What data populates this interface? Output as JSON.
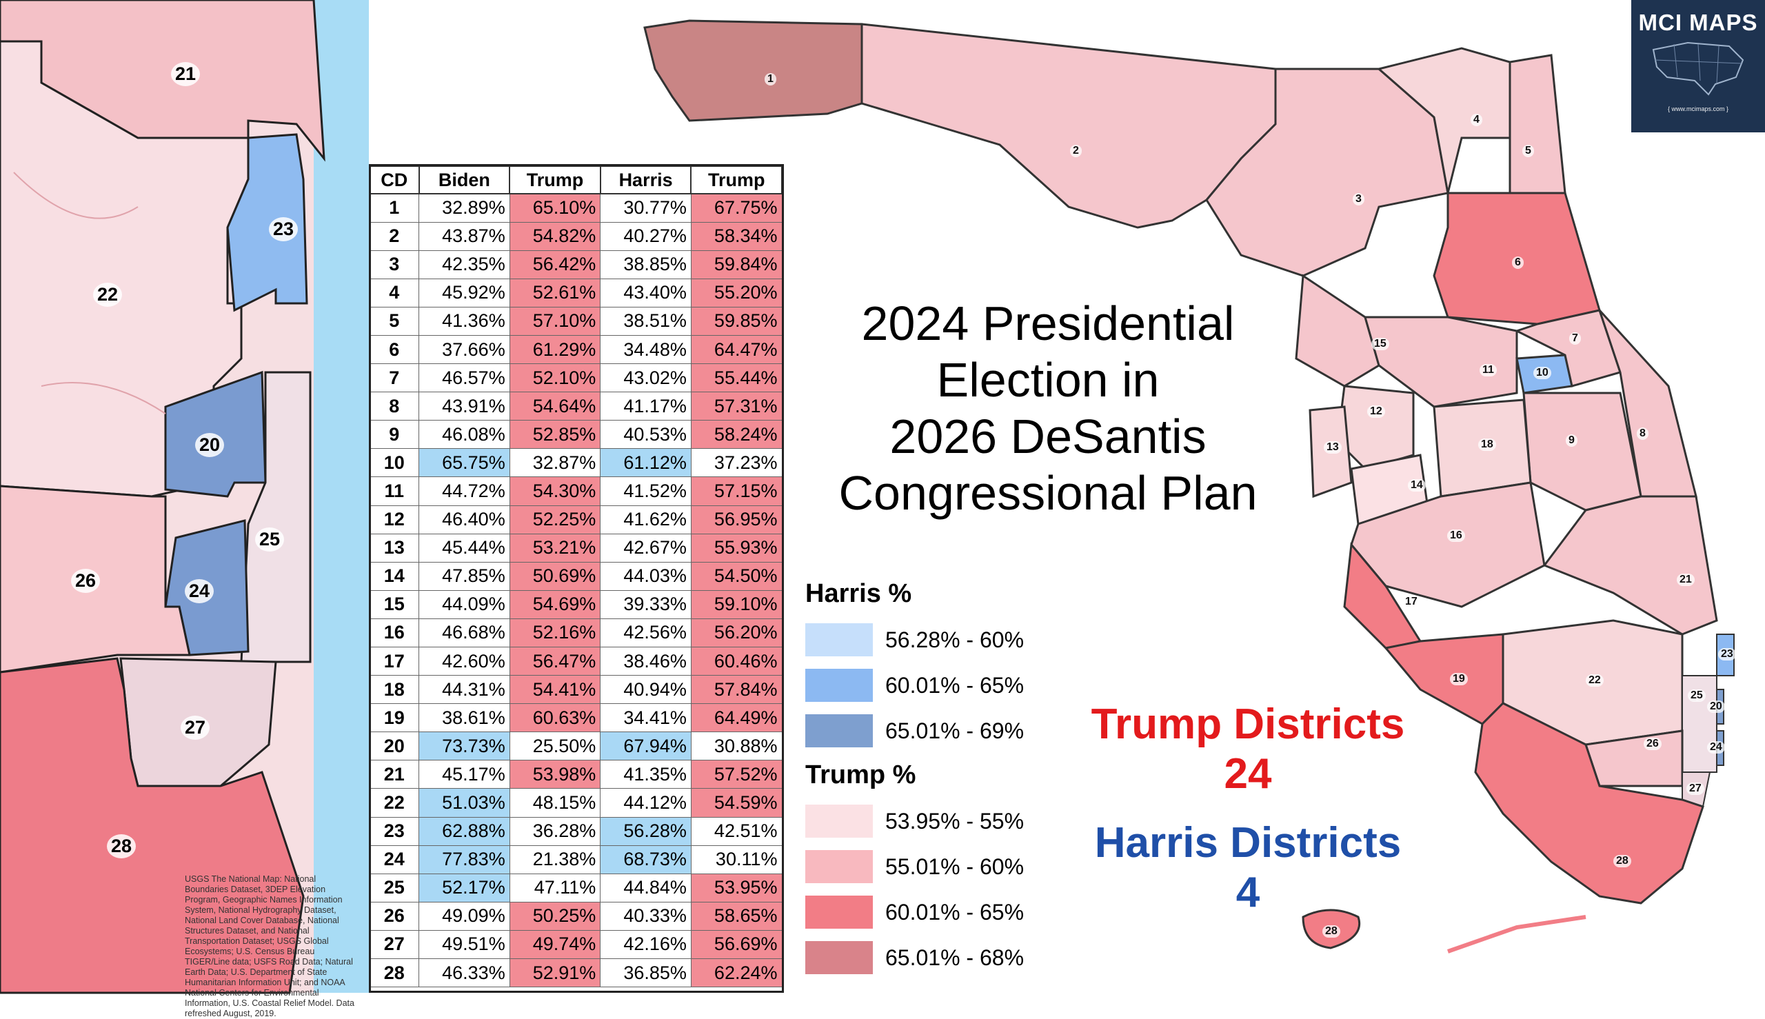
{
  "title_lines": [
    "2024 Presidential",
    "Election in",
    "2026 DeSantis",
    "Congressional Plan"
  ],
  "table": {
    "headers": [
      "CD",
      "Biden",
      "Trump",
      "Harris",
      "Trump"
    ],
    "rows": [
      {
        "cd": "1",
        "biden": "32.89%",
        "trump20": "65.10%",
        "harris": "30.77%",
        "trump24": "67.75%",
        "w20": "r",
        "w24": "r"
      },
      {
        "cd": "2",
        "biden": "43.87%",
        "trump20": "54.82%",
        "harris": "40.27%",
        "trump24": "58.34%",
        "w20": "r",
        "w24": "r"
      },
      {
        "cd": "3",
        "biden": "42.35%",
        "trump20": "56.42%",
        "harris": "38.85%",
        "trump24": "59.84%",
        "w20": "r",
        "w24": "r"
      },
      {
        "cd": "4",
        "biden": "45.92%",
        "trump20": "52.61%",
        "harris": "43.40%",
        "trump24": "55.20%",
        "w20": "r",
        "w24": "r"
      },
      {
        "cd": "5",
        "biden": "41.36%",
        "trump20": "57.10%",
        "harris": "38.51%",
        "trump24": "59.85%",
        "w20": "r",
        "w24": "r"
      },
      {
        "cd": "6",
        "biden": "37.66%",
        "trump20": "61.29%",
        "harris": "34.48%",
        "trump24": "64.47%",
        "w20": "r",
        "w24": "r"
      },
      {
        "cd": "7",
        "biden": "46.57%",
        "trump20": "52.10%",
        "harris": "43.02%",
        "trump24": "55.44%",
        "w20": "r",
        "w24": "r"
      },
      {
        "cd": "8",
        "biden": "43.91%",
        "trump20": "54.64%",
        "harris": "41.17%",
        "trump24": "57.31%",
        "w20": "r",
        "w24": "r"
      },
      {
        "cd": "9",
        "biden": "46.08%",
        "trump20": "52.85%",
        "harris": "40.53%",
        "trump24": "58.24%",
        "w20": "r",
        "w24": "r"
      },
      {
        "cd": "10",
        "biden": "65.75%",
        "trump20": "32.87%",
        "harris": "61.12%",
        "trump24": "37.23%",
        "w20": "b",
        "w24": "b"
      },
      {
        "cd": "11",
        "biden": "44.72%",
        "trump20": "54.30%",
        "harris": "41.52%",
        "trump24": "57.15%",
        "w20": "r",
        "w24": "r"
      },
      {
        "cd": "12",
        "biden": "46.40%",
        "trump20": "52.25%",
        "harris": "41.62%",
        "trump24": "56.95%",
        "w20": "r",
        "w24": "r"
      },
      {
        "cd": "13",
        "biden": "45.44%",
        "trump20": "53.21%",
        "harris": "42.67%",
        "trump24": "55.93%",
        "w20": "r",
        "w24": "r"
      },
      {
        "cd": "14",
        "biden": "47.85%",
        "trump20": "50.69%",
        "harris": "44.03%",
        "trump24": "54.50%",
        "w20": "r",
        "w24": "r"
      },
      {
        "cd": "15",
        "biden": "44.09%",
        "trump20": "54.69%",
        "harris": "39.33%",
        "trump24": "59.10%",
        "w20": "r",
        "w24": "r"
      },
      {
        "cd": "16",
        "biden": "46.68%",
        "trump20": "52.16%",
        "harris": "42.56%",
        "trump24": "56.20%",
        "w20": "r",
        "w24": "r"
      },
      {
        "cd": "17",
        "biden": "42.60%",
        "trump20": "56.47%",
        "harris": "38.46%",
        "trump24": "60.46%",
        "w20": "r",
        "w24": "r"
      },
      {
        "cd": "18",
        "biden": "44.31%",
        "trump20": "54.41%",
        "harris": "40.94%",
        "trump24": "57.84%",
        "w20": "r",
        "w24": "r"
      },
      {
        "cd": "19",
        "biden": "38.61%",
        "trump20": "60.63%",
        "harris": "34.41%",
        "trump24": "64.49%",
        "w20": "r",
        "w24": "r"
      },
      {
        "cd": "20",
        "biden": "73.73%",
        "trump20": "25.50%",
        "harris": "67.94%",
        "trump24": "30.88%",
        "w20": "b",
        "w24": "b"
      },
      {
        "cd": "21",
        "biden": "45.17%",
        "trump20": "53.98%",
        "harris": "41.35%",
        "trump24": "57.52%",
        "w20": "r",
        "w24": "r"
      },
      {
        "cd": "22",
        "biden": "51.03%",
        "trump20": "48.15%",
        "harris": "44.12%",
        "trump24": "54.59%",
        "w20": "b",
        "w24": "r"
      },
      {
        "cd": "23",
        "biden": "62.88%",
        "trump20": "36.28%",
        "harris": "56.28%",
        "trump24": "42.51%",
        "w20": "b",
        "w24": "b"
      },
      {
        "cd": "24",
        "biden": "77.83%",
        "trump20": "21.38%",
        "harris": "68.73%",
        "trump24": "30.11%",
        "w20": "b",
        "w24": "b"
      },
      {
        "cd": "25",
        "biden": "52.17%",
        "trump20": "47.11%",
        "harris": "44.84%",
        "trump24": "53.95%",
        "w20": "b",
        "w24": "r"
      },
      {
        "cd": "26",
        "biden": "49.09%",
        "trump20": "50.25%",
        "harris": "40.33%",
        "trump24": "58.65%",
        "w20": "r",
        "w24": "r"
      },
      {
        "cd": "27",
        "biden": "49.51%",
        "trump20": "49.74%",
        "harris": "42.16%",
        "trump24": "56.69%",
        "w20": "r",
        "w24": "r"
      },
      {
        "cd": "28",
        "biden": "46.33%",
        "trump20": "52.91%",
        "harris": "36.85%",
        "trump24": "62.24%",
        "w20": "r",
        "w24": "r"
      }
    ]
  },
  "legend": {
    "harris_title": "Harris  %",
    "harris_bins": [
      {
        "label": "56.28% - 60%",
        "color": "#c6dffb"
      },
      {
        "label": "60.01% - 65%",
        "color": "#8cb9f2"
      },
      {
        "label": "65.01% - 69%",
        "color": "#7e9fcf"
      }
    ],
    "trump_title": "Trump  %",
    "trump_bins": [
      {
        "label": "53.95% - 55%",
        "color": "#fbe1e4"
      },
      {
        "label": "55.01% - 60%",
        "color": "#f8b9bf"
      },
      {
        "label": "60.01% - 65%",
        "color": "#f27d86"
      },
      {
        "label": "65.01% - 68%",
        "color": "#d9838a"
      }
    ]
  },
  "counts": {
    "trump_label": "Trump Districts",
    "trump_count": "24",
    "harris_label": "Harris Districts",
    "harris_count": "4"
  },
  "logo": {
    "title": "MCI MAPS",
    "url": "{ www.mcimaps.com }"
  },
  "inset": {
    "district_labels": [
      "21",
      "23",
      "22",
      "20",
      "25",
      "26",
      "24",
      "27",
      "28"
    ],
    "credit": "USGS The National Map: National Boundaries Dataset, 3DEP Elevation Program, Geographic Names Information System, National Hydrography Dataset, National Land Cover Database, National Structures Dataset, and National Transportation Dataset; USGS Global Ecosystems; U.S. Census Bureau TIGER/Line data; USFS Road Data; Natural Earth Data; U.S. Department of State Humanitarian Information Unit; and NOAA National Centers for Environmental Information, U.S. Coastal Relief Model. Data refreshed August, 2019."
  },
  "map": {
    "district_labels": [
      "1",
      "2",
      "3",
      "4",
      "5",
      "6",
      "7",
      "8",
      "9",
      "10",
      "11",
      "12",
      "13",
      "14",
      "15",
      "16",
      "17",
      "18",
      "19",
      "20",
      "21",
      "22",
      "23",
      "24",
      "25",
      "26",
      "27",
      "28"
    ]
  }
}
